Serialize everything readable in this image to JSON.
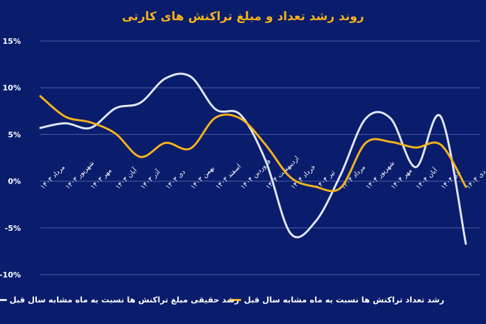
{
  "chart_data": {
    "type": "line",
    "title": "روند رشد تعداد و مبلغ تراکنش های کارتی",
    "xlabel": "",
    "ylabel": "",
    "categories": [
      "مرداد ۱۴۰۳",
      "شهریور ۱۴۰۳",
      "مهر ۱۴۰۳",
      "آبان ۱۴۰۳",
      "آذر ۱۴۰۳",
      "دی ۱۴۰۳",
      "بهمن ۱۴۰۳",
      "اسفند ۱۴۰۳",
      "فروردین ۱۴۰۴",
      "اردیبهشت ۱۴۰۴",
      "خرداد ۱۴۰۴",
      "تیر ۱۴۰۴",
      "مرداد ۱۴۰۴",
      "شهریور ۱۴۰۴",
      "مهر ۱۴۰۴",
      "آبان ۱۴۰۴",
      "آذر ۱۴۰۴",
      "دی ۱۴۰۴"
    ],
    "ylim": [
      -10,
      15
    ],
    "yticks": [
      -10,
      -5,
      0,
      5,
      10,
      15
    ],
    "ytick_labels": [
      "-10%",
      "-5%",
      "0%",
      "5%",
      "10%",
      "15%"
    ],
    "grid": true,
    "legend_position": "bottom",
    "series": [
      {
        "name": "رشد تعداد تراکنش ها نسبت به ماه مشابه سال قبل",
        "color": "#f5b21c",
        "values": [
          9.1,
          6.9,
          6.3,
          5.1,
          2.6,
          4.1,
          3.5,
          6.8,
          6.7,
          3.9,
          0.4,
          -0.6,
          -0.7,
          4.1,
          4.2,
          3.6,
          3.9,
          -0.6
        ]
      },
      {
        "name": "رشد حقیقی مبلغ تراکنش ها نسبت به ماه مشابه سال قبل",
        "color": "#dfe6f7",
        "values": [
          5.7,
          6.2,
          5.7,
          7.8,
          8.4,
          11.0,
          11.2,
          7.7,
          7.1,
          2.2,
          -5.6,
          -4.3,
          0.7,
          6.7,
          6.7,
          1.5,
          6.9,
          -6.7
        ]
      }
    ]
  }
}
